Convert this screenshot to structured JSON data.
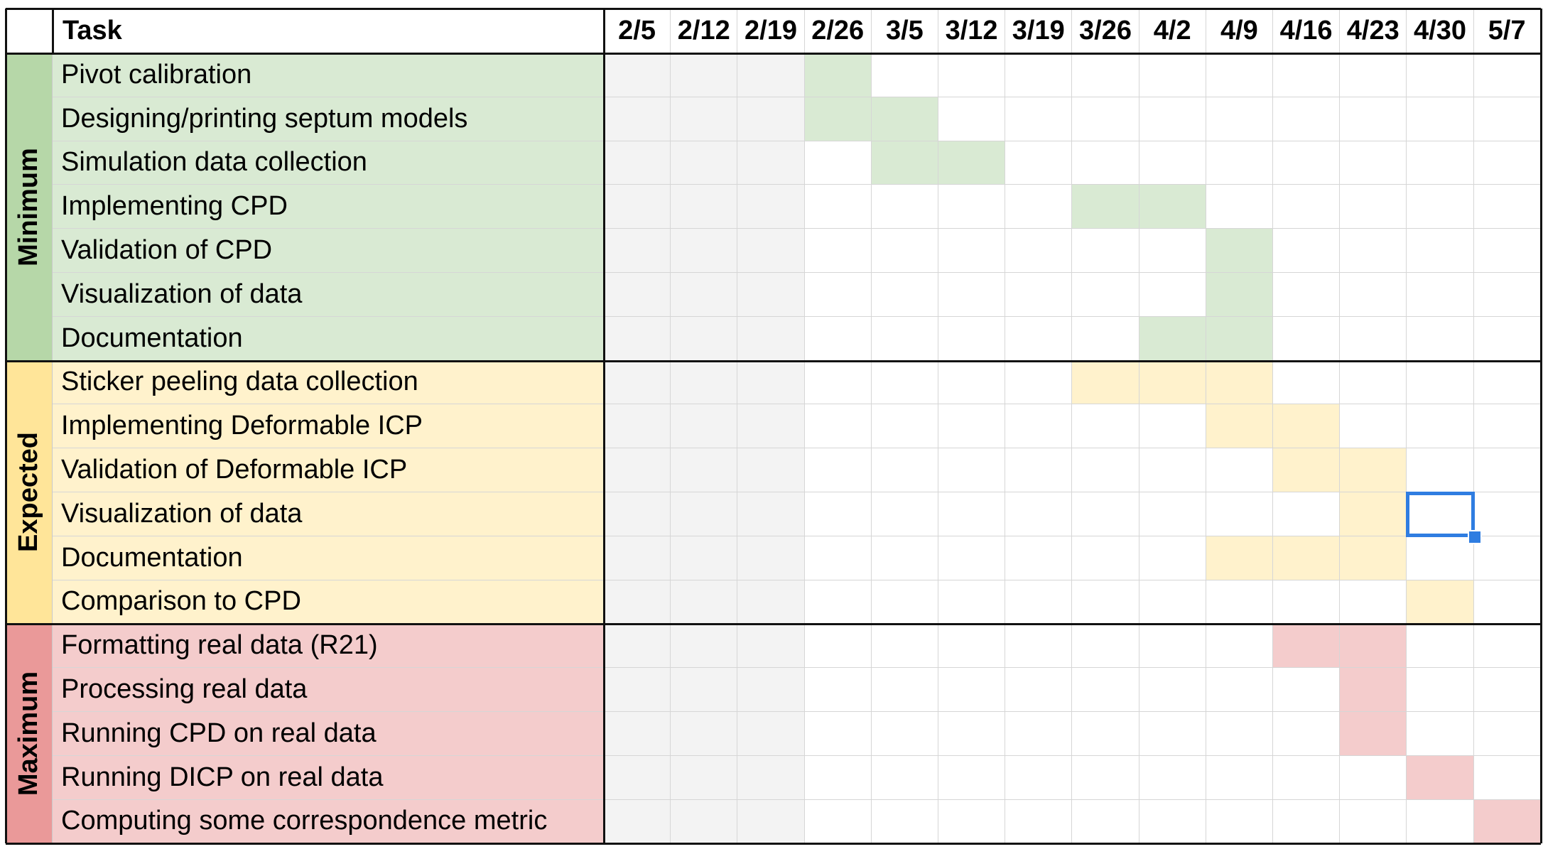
{
  "header": {
    "task_label": "Task",
    "weeks": [
      "2/5",
      "2/12",
      "2/19",
      "2/26",
      "3/5",
      "3/12",
      "3/19",
      "3/26",
      "4/2",
      "4/9",
      "4/16",
      "4/23",
      "4/30",
      "5/7"
    ]
  },
  "colors": {
    "minimum_label_bg": "#b6d7a8",
    "minimum_fill": "#d9ead3",
    "expected_label_bg": "#ffe599",
    "expected_fill": "#fff2cc",
    "maximum_label_bg": "#ea9999",
    "maximum_fill": "#f4cccc",
    "past_week_fill": "#f3f3f3",
    "selection": "#2f7de1"
  },
  "past_week_count": 3,
  "groups": [
    {
      "name": "Minimum",
      "tasks": [
        {
          "label": "Pivot calibration",
          "weeks": [
            3
          ]
        },
        {
          "label": "Designing/printing septum models",
          "weeks": [
            3,
            4
          ]
        },
        {
          "label": "Simulation data collection",
          "weeks": [
            4,
            5
          ]
        },
        {
          "label": "Implementing CPD",
          "weeks": [
            7,
            8
          ]
        },
        {
          "label": "Validation of CPD",
          "weeks": [
            9
          ]
        },
        {
          "label": "Visualization of data",
          "weeks": [
            9
          ]
        },
        {
          "label": "Documentation",
          "weeks": [
            8,
            9
          ]
        }
      ]
    },
    {
      "name": "Expected",
      "tasks": [
        {
          "label": "Sticker peeling data collection",
          "weeks": [
            7,
            8,
            9
          ]
        },
        {
          "label": "Implementing Deformable ICP",
          "weeks": [
            9,
            10
          ]
        },
        {
          "label": "Validation of Deformable ICP",
          "weeks": [
            10,
            11
          ]
        },
        {
          "label": "Visualization of data",
          "weeks": [
            11
          ]
        },
        {
          "label": "Documentation",
          "weeks": [
            9,
            10,
            11
          ]
        },
        {
          "label": "Comparison to CPD",
          "weeks": [
            12
          ]
        }
      ]
    },
    {
      "name": "Maximum",
      "tasks": [
        {
          "label": "Formatting real data (R21)",
          "weeks": [
            10,
            11
          ]
        },
        {
          "label": "Processing real data",
          "weeks": [
            11
          ]
        },
        {
          "label": "Running CPD on real data",
          "weeks": [
            11
          ]
        },
        {
          "label": "Running DICP on real data",
          "weeks": [
            12
          ]
        },
        {
          "label": "Computing some correspondence metric",
          "weeks": [
            13
          ]
        }
      ]
    }
  ],
  "selected_cell": {
    "row": 10,
    "week": 12
  }
}
